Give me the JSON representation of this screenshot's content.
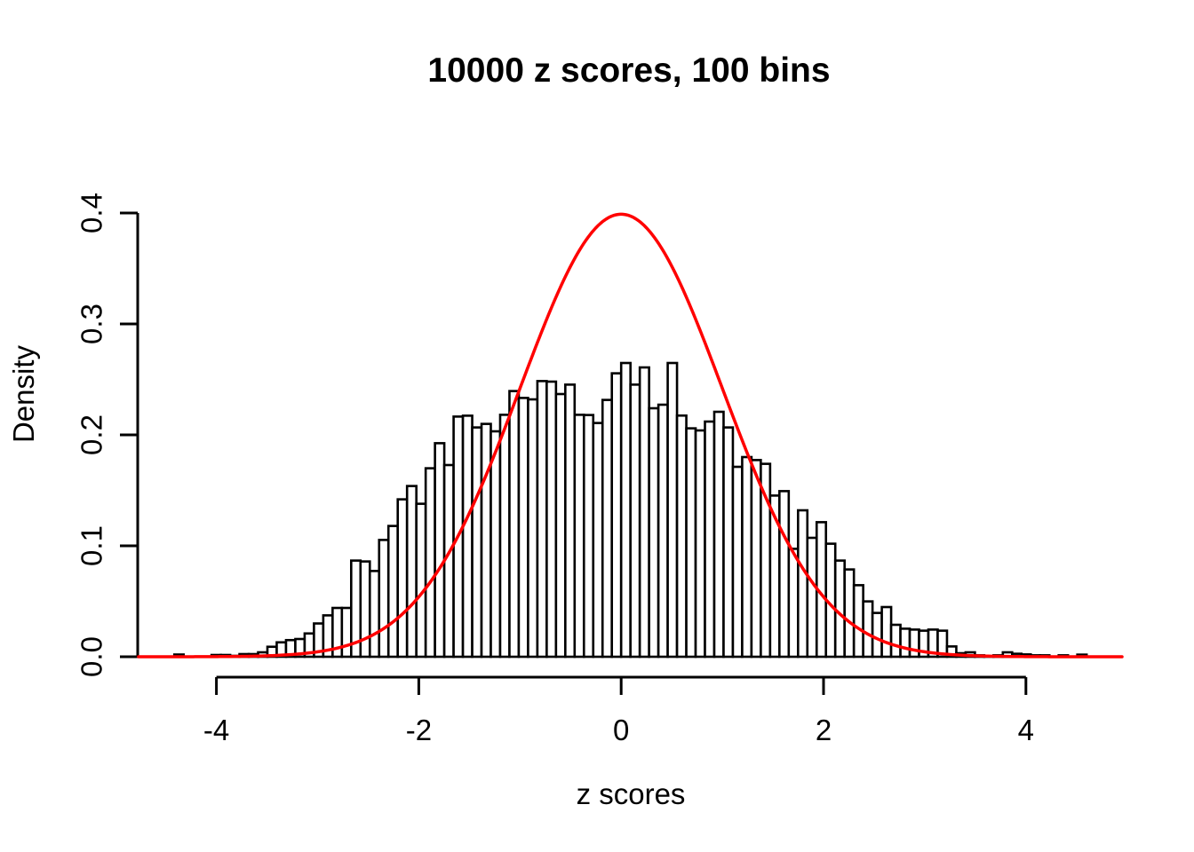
{
  "chart_data": {
    "type": "bar",
    "subtype": "histogram-with-density-curve",
    "title": "10000 z scores, 100 bins",
    "xlabel": "z scores",
    "ylabel": "Density",
    "x_ticks": [
      -4,
      -2,
      0,
      2,
      4
    ],
    "x_tick_labels": [
      "-4",
      "-2",
      "0",
      "2",
      "4"
    ],
    "y_ticks": [
      0,
      0.1,
      0.2,
      0.3,
      0.4
    ],
    "y_tick_labels": [
      "0.0",
      "0.1",
      "0.2",
      "0.3",
      "0.4"
    ],
    "xlim": [
      -4.77,
      4.97
    ],
    "ylim": [
      0,
      0.4
    ],
    "grid": false,
    "legend": null,
    "histogram": {
      "bin_start": -4.6,
      "bin_width": 0.092,
      "n_bins": 100,
      "densities": [
        0,
        0,
        0.002,
        0,
        0,
        0,
        0.0016,
        0.0016,
        0.0008,
        0.0024,
        0.0024,
        0.004,
        0.009,
        0.013,
        0.015,
        0.016,
        0.021,
        0.03,
        0.0373,
        0.044,
        0.044,
        0.0867,
        0.0859,
        0.0773,
        0.1053,
        0.1179,
        0.1419,
        0.1539,
        0.1379,
        0.1699,
        0.1925,
        0.1728,
        0.2165,
        0.2173,
        0.2067,
        0.2099,
        0.2032,
        0.2181,
        0.2395,
        0.2333,
        0.232,
        0.2485,
        0.248,
        0.2368,
        0.2453,
        0.2181,
        0.2179,
        0.2107,
        0.2315,
        0.2555,
        0.2648,
        0.2453,
        0.2608,
        0.224,
        0.2272,
        0.2648,
        0.2174,
        0.2059,
        0.204,
        0.212,
        0.2208,
        0.2067,
        0.1712,
        0.18,
        0.1773,
        0.1739,
        0.1453,
        0.1493,
        0.0973,
        0.132,
        0.1072,
        0.1213,
        0.1019,
        0.0867,
        0.0787,
        0.0645,
        0.0499,
        0.0395,
        0.0448,
        0.0288,
        0.0253,
        0.0245,
        0.0235,
        0.0245,
        0.0235,
        0.0093,
        0.0032,
        0.004,
        0.0013,
        0.0006,
        0.0013,
        0.004,
        0.0027,
        0.0021,
        0.0013,
        0.0013,
        0,
        0.0013,
        0,
        0.0019
      ]
    },
    "curve": {
      "name": "standard-normal-density",
      "mean": 0,
      "sd": 1,
      "z_from": -4.77,
      "z_to": 4.95,
      "peak_density": 0.3989
    }
  },
  "colors": {
    "background": "#ffffff",
    "axis": "#000000",
    "text": "#000000",
    "bar_fill": "#ffffff",
    "bar_stroke": "#000000",
    "curve": "#ff0000"
  }
}
